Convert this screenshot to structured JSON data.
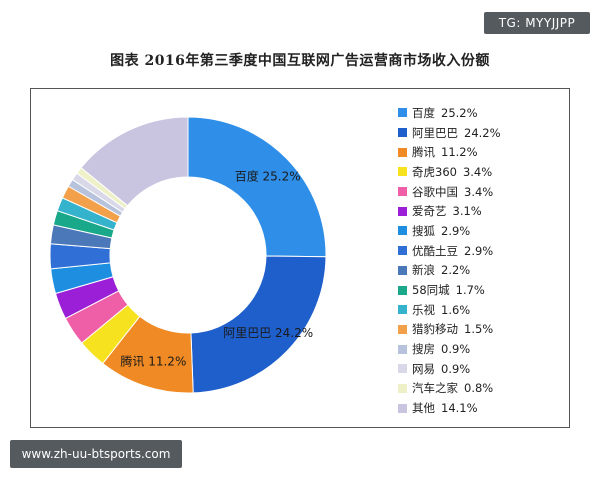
{
  "watermark_top": "TG: MYYJJPP",
  "watermark_bottom": "www.zh-uu-btsports.com",
  "chart_data": {
    "type": "pie",
    "donut": true,
    "title": "图表 2016年第三季度中国互联网广告运营商市场收入份额",
    "unit": "%",
    "legend_position": "right",
    "slices": [
      {
        "name": "百度",
        "value": 25.2,
        "label": "25.2%",
        "color": "#2f8fe8"
      },
      {
        "name": "阿里巴巴",
        "value": 24.2,
        "label": "24.2%",
        "color": "#1f5fcc"
      },
      {
        "name": "腾讯",
        "value": 11.2,
        "label": "11.2%",
        "color": "#f08a24"
      },
      {
        "name": "奇虎360",
        "value": 3.4,
        "label": "3.4%",
        "color": "#f7e21f"
      },
      {
        "name": "谷歌中国",
        "value": 3.4,
        "label": "3.4%",
        "color": "#ef5fa8"
      },
      {
        "name": "爱奇艺",
        "value": 3.1,
        "label": "3.1%",
        "color": "#9b1fd6"
      },
      {
        "name": "搜狐",
        "value": 2.9,
        "label": "2.9%",
        "color": "#1e8fe0"
      },
      {
        "name": "优酷土豆",
        "value": 2.9,
        "label": "2.9%",
        "color": "#2f6fd6"
      },
      {
        "name": "新浪",
        "value": 2.2,
        "label": "2.2%",
        "color": "#4a78b8"
      },
      {
        "name": "58同城",
        "value": 1.7,
        "label": "1.7%",
        "color": "#1aa88a"
      },
      {
        "name": "乐视",
        "value": 1.6,
        "label": "1.6%",
        "color": "#36b3cc"
      },
      {
        "name": "猎豹移动",
        "value": 1.5,
        "label": "1.5%",
        "color": "#f2a04a"
      },
      {
        "name": "搜房",
        "value": 0.9,
        "label": "0.9%",
        "color": "#b7c2dc"
      },
      {
        "name": "网易",
        "value": 0.9,
        "label": "0.9%",
        "color": "#d8d8e8"
      },
      {
        "name": "汽车之家",
        "value": 0.8,
        "label": "0.8%",
        "color": "#eef0c8"
      },
      {
        "name": "其他",
        "value": 14.1,
        "label": "14.1%",
        "color": "#c9c4e0"
      }
    ],
    "slice_labels_shown": [
      "百度",
      "阿里巴巴",
      "腾讯"
    ]
  }
}
